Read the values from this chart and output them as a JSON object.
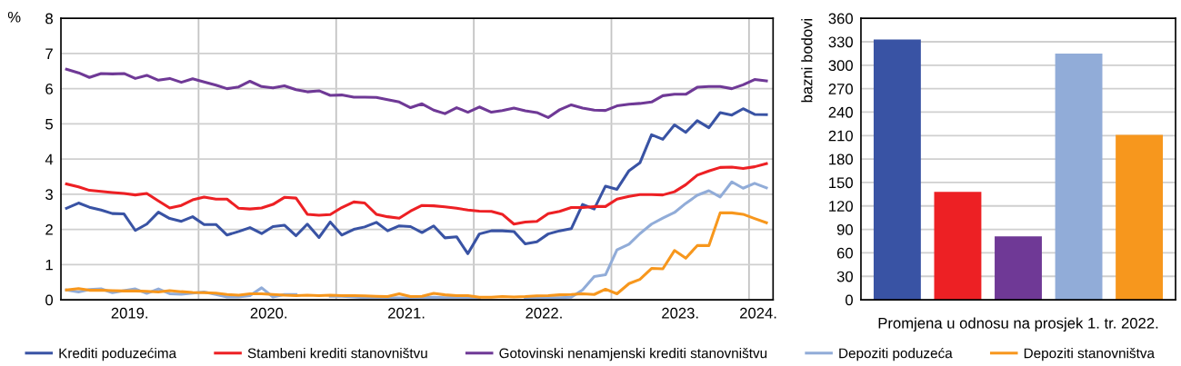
{
  "chart_data": [
    {
      "type": "line",
      "ylabel": "%",
      "ylim": [
        0,
        8
      ],
      "yticks": [
        0,
        1,
        2,
        3,
        4,
        5,
        6,
        7,
        8
      ],
      "grid": "y",
      "legend": "bottom",
      "line_style": "solid",
      "xlim": [
        "2019-01-01",
        "2024-03-04"
      ],
      "xticks": [
        {
          "value": "2019-07-01",
          "label": "2019."
        },
        {
          "value": "2020-07-05",
          "label": "2020."
        },
        {
          "value": "2021-07-05",
          "label": "2021."
        },
        {
          "value": "2022-07-05",
          "label": "2022."
        },
        {
          "value": "2023-07-01",
          "label": "2023."
        },
        {
          "value": "2024-01-26",
          "label": "2024."
        }
      ],
      "ref_lines": [
        {
          "axis": "x",
          "value": "2020-01-01",
          "color": "#c4c4c4"
        },
        {
          "axis": "x",
          "value": "2021-01-01",
          "color": "#c4c4c4"
        },
        {
          "axis": "x",
          "value": "2022-01-01",
          "color": "#c4c4c4"
        },
        {
          "axis": "x",
          "value": "2023-01-01",
          "color": "#c4c4c4"
        },
        {
          "axis": "x",
          "value": "2024-01-01",
          "color": "#c4c4c4"
        }
      ],
      "x": [
        "2019-01-16",
        "2019-02-16",
        "2019-03-16",
        "2019-04-16",
        "2019-05-16",
        "2019-06-16",
        "2019-07-16",
        "2019-08-16",
        "2019-09-16",
        "2019-10-16",
        "2019-11-16",
        "2019-12-16",
        "2020-01-16",
        "2020-02-16",
        "2020-03-16",
        "2020-04-16",
        "2020-05-16",
        "2020-06-16",
        "2020-07-16",
        "2020-08-16",
        "2020-09-16",
        "2020-10-16",
        "2020-11-16",
        "2020-12-16",
        "2021-01-16",
        "2021-02-16",
        "2021-03-16",
        "2021-04-16",
        "2021-05-16",
        "2021-06-16",
        "2021-07-16",
        "2021-08-16",
        "2021-09-16",
        "2021-10-16",
        "2021-11-16",
        "2021-12-16",
        "2022-01-16",
        "2022-02-16",
        "2022-03-16",
        "2022-04-16",
        "2022-05-16",
        "2022-06-16",
        "2022-07-16",
        "2022-08-16",
        "2022-09-16",
        "2022-10-16",
        "2022-11-16",
        "2022-12-16",
        "2023-01-16",
        "2023-02-16",
        "2023-03-16",
        "2023-04-16",
        "2023-05-16",
        "2023-06-16",
        "2023-07-16",
        "2023-08-16",
        "2023-09-16",
        "2023-10-16",
        "2023-11-16",
        "2023-12-16",
        "2024-01-16",
        "2024-02-16"
      ],
      "series": [
        {
          "name": "Krediti poduzećima",
          "color": "#3953a4",
          "values": [
            2.6,
            2.75,
            2.63,
            2.55,
            2.45,
            2.44,
            1.97,
            2.15,
            2.49,
            2.31,
            2.23,
            2.36,
            2.14,
            2.14,
            1.84,
            1.94,
            2.05,
            1.88,
            2.08,
            2.12,
            1.82,
            2.15,
            1.77,
            2.21,
            1.84,
            2.0,
            2.07,
            2.2,
            1.96,
            2.1,
            2.08,
            1.91,
            2.1,
            1.76,
            1.79,
            1.31,
            1.87,
            1.96,
            1.96,
            1.94,
            1.59,
            1.65,
            1.87,
            1.96,
            2.02,
            2.71,
            2.58,
            3.23,
            3.14,
            3.67,
            3.89,
            4.69,
            4.56,
            4.97,
            4.76,
            5.09,
            4.89,
            5.32,
            5.25,
            5.43,
            5.27,
            5.26
          ]
        },
        {
          "name": "Stambeni krediti stanovništvu",
          "color": "#ed2024",
          "values": [
            3.29,
            3.21,
            3.11,
            3.08,
            3.05,
            3.02,
            2.98,
            3.02,
            2.81,
            2.61,
            2.68,
            2.84,
            2.92,
            2.86,
            2.86,
            2.6,
            2.58,
            2.61,
            2.71,
            2.91,
            2.89,
            2.43,
            2.4,
            2.42,
            2.62,
            2.78,
            2.75,
            2.43,
            2.36,
            2.32,
            2.52,
            2.68,
            2.67,
            2.64,
            2.6,
            2.55,
            2.52,
            2.51,
            2.43,
            2.15,
            2.21,
            2.23,
            2.45,
            2.51,
            2.62,
            2.62,
            2.65,
            2.65,
            2.86,
            2.94,
            2.99,
            2.99,
            2.98,
            3.07,
            3.27,
            3.54,
            3.66,
            3.76,
            3.77,
            3.73,
            3.78,
            3.87
          ]
        },
        {
          "name": "Gotovinski nenamjenski krediti stanovništvu",
          "color": "#6f3996",
          "values": [
            6.55,
            6.45,
            6.32,
            6.43,
            6.42,
            6.43,
            6.29,
            6.38,
            6.24,
            6.29,
            6.18,
            6.28,
            6.19,
            6.1,
            6.0,
            6.05,
            6.21,
            6.06,
            6.02,
            6.08,
            5.97,
            5.91,
            5.94,
            5.81,
            5.82,
            5.76,
            5.76,
            5.75,
            5.69,
            5.62,
            5.46,
            5.57,
            5.39,
            5.29,
            5.46,
            5.33,
            5.48,
            5.33,
            5.38,
            5.45,
            5.37,
            5.32,
            5.18,
            5.4,
            5.54,
            5.45,
            5.39,
            5.38,
            5.51,
            5.56,
            5.58,
            5.62,
            5.8,
            5.84,
            5.84,
            6.04,
            6.06,
            6.06,
            6.0,
            6.11,
            6.26,
            6.22
          ]
        },
        {
          "name": "Depoziti poduzeća",
          "color": "#91acd8",
          "values": [
            0.28,
            0.22,
            0.29,
            0.31,
            0.2,
            0.26,
            0.31,
            0.18,
            0.31,
            0.17,
            0.16,
            0.19,
            0.22,
            0.15,
            0.08,
            0.08,
            0.12,
            0.34,
            0.08,
            0.15,
            0.15,
            null,
            null,
            0.1,
            0.1,
            0.08,
            0.06,
            0.07,
            0.06,
            0.05,
            0.05,
            0.06,
            0.07,
            0.06,
            0.07,
            0.06,
            0.05,
            null,
            null,
            null,
            0.05,
            0.06,
            0.06,
            0.06,
            0.07,
            0.28,
            0.66,
            0.71,
            1.42,
            1.58,
            1.88,
            2.15,
            2.32,
            2.48,
            2.74,
            2.97,
            3.1,
            2.92,
            3.35,
            3.17,
            3.31,
            3.18
          ]
        },
        {
          "name": "Depoziti stanovništva",
          "color": "#f7971d",
          "values": [
            0.28,
            0.32,
            0.27,
            0.27,
            0.26,
            0.25,
            0.25,
            0.24,
            0.22,
            0.26,
            0.23,
            0.21,
            0.2,
            0.19,
            0.15,
            0.13,
            0.17,
            0.17,
            0.15,
            0.13,
            0.12,
            0.13,
            0.12,
            0.13,
            0.12,
            0.12,
            0.11,
            0.1,
            0.09,
            0.17,
            0.09,
            0.1,
            0.18,
            0.14,
            0.12,
            0.12,
            0.07,
            0.07,
            0.09,
            0.08,
            0.09,
            0.11,
            0.12,
            0.14,
            0.15,
            0.17,
            0.15,
            0.3,
            0.17,
            0.46,
            0.58,
            0.89,
            0.88,
            1.4,
            1.18,
            1.54,
            1.54,
            2.47,
            2.47,
            2.43,
            2.31,
            2.19
          ]
        }
      ]
    },
    {
      "type": "bar",
      "ylabel": "bazni bodovi",
      "xlabel": "Promjena u odnosu na prosjek 1. tr. 2022.",
      "ylim": [
        0,
        360
      ],
      "yticks": [
        0,
        30,
        60,
        90,
        120,
        150,
        180,
        210,
        240,
        270,
        300,
        330,
        360
      ],
      "grid": "y",
      "categories": [
        null,
        null,
        null,
        null,
        null
      ],
      "values": [
        333,
        138,
        81,
        315,
        211
      ],
      "colors": [
        "#3953a4",
        "#ed2024",
        "#6f3996",
        "#91acd8",
        "#f7971d"
      ]
    }
  ]
}
